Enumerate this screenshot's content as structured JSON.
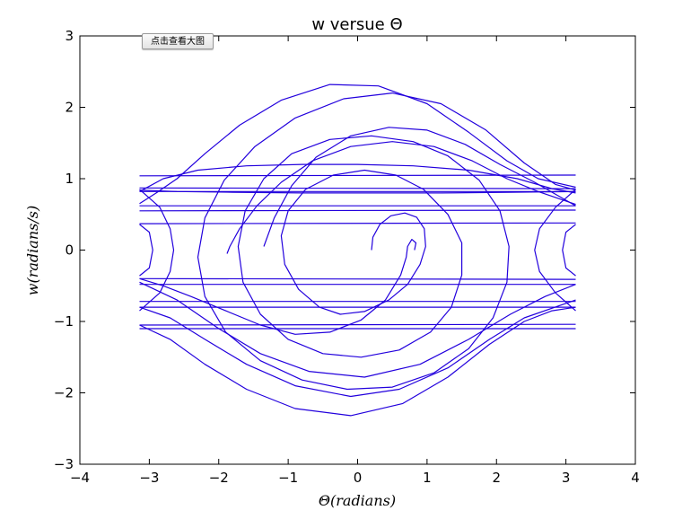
{
  "overlay": {
    "view_large_label": "点击查看大图"
  },
  "chart_data": {
    "type": "line",
    "title": "w versue Θ",
    "xlabel": "Θ(radians)",
    "ylabel": "w(radians/s)",
    "xlim": [
      -4,
      4
    ],
    "ylim": [
      -3,
      3
    ],
    "xticks": [
      -4,
      -3,
      -2,
      -1,
      0,
      1,
      2,
      3,
      4
    ],
    "yticks": [
      -3,
      -2,
      -1,
      0,
      1,
      2,
      3
    ],
    "xtick_labels": [
      "−4",
      "−3",
      "−2",
      "−1",
      "0",
      "1",
      "2",
      "3",
      "4"
    ],
    "ytick_labels": [
      "−3",
      "−2",
      "−1",
      "0",
      "1",
      "2",
      "3"
    ],
    "grid": false,
    "legend": "none",
    "line_color": "#2200dd",
    "series": [
      {
        "points": [
          [
            0.2,
            0.0
          ],
          [
            0.22,
            0.18
          ],
          [
            0.32,
            0.36
          ],
          [
            0.48,
            0.48
          ],
          [
            0.68,
            0.52
          ],
          [
            0.85,
            0.46
          ],
          [
            0.96,
            0.3
          ],
          [
            0.98,
            0.05
          ],
          [
            0.9,
            -0.2
          ],
          [
            0.72,
            -0.48
          ],
          [
            0.45,
            -0.7
          ],
          [
            0.1,
            -0.86
          ],
          [
            -0.25,
            -0.9
          ],
          [
            -0.55,
            -0.8
          ],
          [
            -0.85,
            -0.55
          ],
          [
            -1.05,
            -0.2
          ],
          [
            -1.1,
            0.2
          ],
          [
            -1.0,
            0.55
          ],
          [
            -0.75,
            0.85
          ],
          [
            -0.35,
            1.05
          ],
          [
            0.1,
            1.12
          ],
          [
            0.55,
            1.05
          ],
          [
            0.95,
            0.85
          ],
          [
            1.3,
            0.5
          ],
          [
            1.5,
            0.1
          ],
          [
            1.5,
            -0.35
          ],
          [
            1.35,
            -0.8
          ],
          [
            1.05,
            -1.15
          ],
          [
            0.6,
            -1.4
          ],
          [
            0.05,
            -1.5
          ],
          [
            -0.5,
            -1.45
          ],
          [
            -1.0,
            -1.25
          ],
          [
            -1.4,
            -0.9
          ],
          [
            -1.65,
            -0.45
          ],
          [
            -1.72,
            0.05
          ],
          [
            -1.62,
            0.55
          ],
          [
            -1.35,
            1.0
          ],
          [
            -0.95,
            1.35
          ],
          [
            -0.4,
            1.55
          ],
          [
            0.2,
            1.6
          ],
          [
            0.8,
            1.52
          ],
          [
            1.3,
            1.32
          ],
          [
            1.75,
            0.98
          ],
          [
            2.05,
            0.55
          ],
          [
            2.18,
            0.05
          ],
          [
            2.15,
            -0.45
          ],
          [
            1.95,
            -0.95
          ],
          [
            1.6,
            -1.38
          ],
          [
            1.1,
            -1.72
          ],
          [
            0.5,
            -1.92
          ],
          [
            -0.15,
            -1.95
          ],
          [
            -0.8,
            -1.82
          ],
          [
            -1.4,
            -1.55
          ],
          [
            -1.9,
            -1.15
          ],
          [
            -2.2,
            -0.65
          ],
          [
            -2.3,
            -0.1
          ],
          [
            -2.2,
            0.45
          ],
          [
            -1.92,
            0.98
          ],
          [
            -1.48,
            1.45
          ],
          [
            -0.9,
            1.85
          ],
          [
            -0.2,
            2.12
          ],
          [
            0.5,
            2.2
          ],
          [
            1.2,
            2.05
          ],
          [
            1.85,
            1.68
          ],
          [
            2.4,
            1.22
          ],
          [
            2.85,
            0.92
          ],
          [
            3.14,
            0.84
          ]
        ]
      },
      {
        "points": [
          [
            -3.14,
            0.84
          ],
          [
            -2.6,
            0.82
          ],
          [
            -1.8,
            0.81
          ],
          [
            -0.8,
            0.8
          ],
          [
            0.2,
            0.8
          ],
          [
            1.2,
            0.8
          ],
          [
            2.2,
            0.81
          ],
          [
            3.14,
            0.82
          ]
        ]
      },
      {
        "points": [
          [
            -3.14,
            0.82
          ],
          [
            -2.8,
            1.0
          ],
          [
            -2.3,
            1.12
          ],
          [
            -1.6,
            1.18
          ],
          [
            -0.8,
            1.2
          ],
          [
            0.0,
            1.2
          ],
          [
            0.8,
            1.18
          ],
          [
            1.6,
            1.12
          ],
          [
            2.3,
            1.0
          ],
          [
            2.8,
            0.86
          ],
          [
            3.14,
            0.8
          ]
        ]
      },
      {
        "points": [
          [
            -1.88,
            -0.05
          ],
          [
            -1.84,
            0.05
          ],
          [
            -1.7,
            0.3
          ],
          [
            -1.45,
            0.62
          ],
          [
            -1.1,
            0.95
          ],
          [
            -0.65,
            1.25
          ],
          [
            -0.1,
            1.45
          ],
          [
            0.5,
            1.52
          ],
          [
            1.1,
            1.45
          ],
          [
            1.65,
            1.25
          ],
          [
            2.15,
            1.0
          ],
          [
            2.6,
            0.82
          ],
          [
            3.14,
            0.64
          ]
        ]
      },
      {
        "points": [
          [
            -1.35,
            0.05
          ],
          [
            -1.2,
            0.45
          ],
          [
            -0.95,
            0.9
          ],
          [
            -0.6,
            1.3
          ],
          [
            -0.1,
            1.6
          ],
          [
            0.45,
            1.72
          ],
          [
            1.0,
            1.68
          ],
          [
            1.55,
            1.48
          ],
          [
            2.05,
            1.2
          ],
          [
            2.55,
            0.95
          ],
          [
            3.14,
            0.62
          ]
        ]
      },
      {
        "points": [
          [
            0.82,
            0.0
          ],
          [
            0.84,
            0.1
          ],
          [
            0.78,
            0.15
          ],
          [
            0.72,
            0.05
          ],
          [
            0.7,
            -0.1
          ],
          [
            0.62,
            -0.35
          ],
          [
            0.4,
            -0.7
          ],
          [
            0.05,
            -0.98
          ],
          [
            -0.4,
            -1.15
          ],
          [
            -0.9,
            -1.18
          ],
          [
            -1.4,
            -1.05
          ],
          [
            -1.9,
            -0.85
          ],
          [
            -2.4,
            -0.65
          ],
          [
            -2.8,
            -0.5
          ],
          [
            -3.14,
            -0.4
          ]
        ]
      },
      {
        "points": [
          [
            -3.14,
            0.65
          ],
          [
            -2.9,
            0.8
          ],
          [
            -2.6,
            1.0
          ],
          [
            -2.2,
            1.35
          ],
          [
            -1.7,
            1.75
          ],
          [
            -1.1,
            2.1
          ],
          [
            -0.4,
            2.32
          ],
          [
            0.3,
            2.3
          ],
          [
            1.0,
            2.05
          ],
          [
            1.6,
            1.65
          ],
          [
            2.15,
            1.25
          ],
          [
            2.6,
            1.0
          ],
          [
            3.14,
            0.88
          ]
        ]
      },
      {
        "points": [
          [
            -3.14,
            -1.05
          ],
          [
            -2.7,
            -1.25
          ],
          [
            -2.2,
            -1.6
          ],
          [
            -1.6,
            -1.95
          ],
          [
            -0.9,
            -2.22
          ],
          [
            -0.1,
            -2.32
          ],
          [
            0.65,
            -2.15
          ],
          [
            1.3,
            -1.78
          ],
          [
            1.9,
            -1.32
          ],
          [
            2.4,
            -1.0
          ],
          [
            2.8,
            -0.85
          ],
          [
            3.14,
            -0.8
          ]
        ]
      },
      {
        "points": [
          [
            -3.14,
            -0.8
          ],
          [
            -2.7,
            -0.95
          ],
          [
            -2.2,
            -1.25
          ],
          [
            -1.6,
            -1.6
          ],
          [
            -0.9,
            -1.9
          ],
          [
            -0.1,
            -2.05
          ],
          [
            0.6,
            -1.95
          ],
          [
            1.3,
            -1.65
          ],
          [
            1.9,
            -1.25
          ],
          [
            2.4,
            -0.95
          ],
          [
            3.14,
            -0.7
          ]
        ]
      },
      {
        "points": [
          [
            -3.14,
            -0.45
          ],
          [
            -2.6,
            -0.7
          ],
          [
            -2.0,
            -1.1
          ],
          [
            -1.4,
            -1.45
          ],
          [
            -0.7,
            -1.7
          ],
          [
            0.1,
            -1.78
          ],
          [
            0.9,
            -1.6
          ],
          [
            1.6,
            -1.25
          ],
          [
            2.2,
            -0.9
          ],
          [
            2.7,
            -0.65
          ],
          [
            3.14,
            -0.48
          ]
        ]
      },
      {
        "points": [
          [
            -3.14,
            0.36
          ],
          [
            -3.0,
            0.25
          ],
          [
            -2.95,
            0.0
          ],
          [
            -3.0,
            -0.25
          ],
          [
            -3.14,
            -0.36
          ]
        ]
      },
      {
        "points": [
          [
            -3.14,
            -0.85
          ],
          [
            -2.85,
            -0.6
          ],
          [
            -2.7,
            -0.3
          ],
          [
            -2.65,
            0.0
          ],
          [
            -2.7,
            0.3
          ],
          [
            -2.85,
            0.6
          ],
          [
            -3.14,
            0.85
          ]
        ]
      },
      {
        "points": [
          [
            3.14,
            0.36
          ],
          [
            3.0,
            0.25
          ],
          [
            2.95,
            0.0
          ],
          [
            3.0,
            -0.25
          ],
          [
            3.14,
            -0.36
          ]
        ]
      },
      {
        "points": [
          [
            3.14,
            -0.85
          ],
          [
            2.85,
            -0.6
          ],
          [
            2.62,
            -0.3
          ],
          [
            2.55,
            0.0
          ],
          [
            2.62,
            0.3
          ],
          [
            2.85,
            0.6
          ],
          [
            3.14,
            0.85
          ]
        ]
      },
      {
        "points": [
          [
            -3.14,
            1.04
          ],
          [
            3.14,
            1.05
          ]
        ]
      },
      {
        "points": [
          [
            -3.14,
            0.87
          ],
          [
            3.14,
            0.86
          ]
        ]
      },
      {
        "points": [
          [
            -3.14,
            0.82
          ],
          [
            3.14,
            0.82
          ]
        ]
      },
      {
        "points": [
          [
            -3.14,
            0.62
          ],
          [
            3.14,
            0.62
          ]
        ]
      },
      {
        "points": [
          [
            -3.14,
            0.55
          ],
          [
            3.14,
            0.56
          ]
        ]
      },
      {
        "points": [
          [
            -3.14,
            0.37
          ],
          [
            3.14,
            0.38
          ]
        ]
      },
      {
        "points": [
          [
            -3.14,
            -0.4
          ],
          [
            3.14,
            -0.41
          ]
        ]
      },
      {
        "points": [
          [
            -3.14,
            -0.48
          ],
          [
            3.14,
            -0.48
          ]
        ]
      },
      {
        "points": [
          [
            -3.14,
            -0.72
          ],
          [
            3.14,
            -0.72
          ]
        ]
      },
      {
        "points": [
          [
            -3.14,
            -0.8
          ],
          [
            3.14,
            -0.8
          ]
        ]
      },
      {
        "points": [
          [
            -3.14,
            -1.05
          ],
          [
            3.14,
            -1.04
          ]
        ]
      },
      {
        "points": [
          [
            -3.14,
            -1.1
          ],
          [
            3.14,
            -1.1
          ]
        ]
      }
    ]
  }
}
